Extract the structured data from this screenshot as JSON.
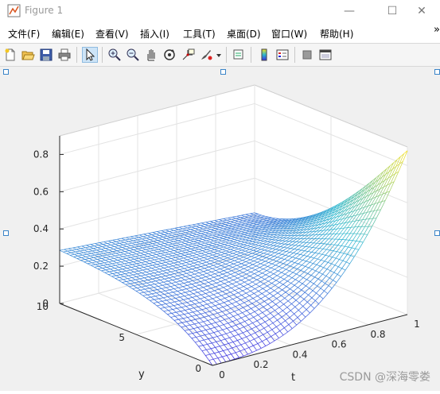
{
  "window": {
    "title": "Figure 1",
    "controls": {
      "minimize": "—",
      "maximize": "☐",
      "close": "✕"
    }
  },
  "menu": {
    "items": [
      "文件(F)",
      "编辑(E)",
      "查看(V)",
      "插入(I)",
      "工具(T)",
      "桌面(D)",
      "窗口(W)",
      "帮助(H)"
    ],
    "overflow": "»"
  },
  "toolbar": {
    "icons": [
      "new-figure-icon",
      "open-icon",
      "save-icon",
      "print-icon",
      "pointer-icon",
      "zoom-in-icon",
      "zoom-out-icon",
      "pan-icon",
      "rotate-icon",
      "data-cursor-icon",
      "brush-icon",
      "dropdown-icon",
      "link-icon",
      "colorbar-icon",
      "legend-icon",
      "hide-tools-icon",
      "dock-icon"
    ]
  },
  "plot": {
    "type": "surface-mesh",
    "z_ticks": [
      "0",
      "0.2",
      "0.4",
      "0.6",
      "0.8"
    ],
    "y_ticks": [
      "0",
      "5",
      "10"
    ],
    "t_ticks": [
      "0",
      "0.2",
      "0.4",
      "0.6",
      "0.8",
      "1"
    ],
    "y_label": "y",
    "t_label": "t",
    "z_range": [
      0,
      0.9
    ],
    "y_range": [
      0,
      10
    ],
    "t_range": [
      0,
      1
    ],
    "colors": {
      "low": "#3d2de0",
      "mid": "#2bb6cf",
      "high": "#f5e11f"
    }
  },
  "watermark": "CSDN @深海零娄"
}
